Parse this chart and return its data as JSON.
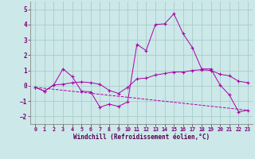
{
  "xlabel": "Windchill (Refroidissement éolien,°C)",
  "bg_color": "#cce8e8",
  "grid_color": "#aacccc",
  "line_color": "#aa00aa",
  "xlim": [
    -0.5,
    23.5
  ],
  "ylim": [
    -2.5,
    5.5
  ],
  "yticks": [
    -2,
    -1,
    0,
    1,
    2,
    3,
    4,
    5
  ],
  "xticks": [
    0,
    1,
    2,
    3,
    4,
    5,
    6,
    7,
    8,
    9,
    10,
    11,
    12,
    13,
    14,
    15,
    16,
    17,
    18,
    19,
    20,
    21,
    22,
    23
  ],
  "series": [
    {
      "x": [
        0,
        1,
        2,
        3,
        4,
        5,
        6,
        7,
        8,
        9,
        10,
        11,
        12,
        13,
        14,
        15,
        16,
        17,
        18,
        19,
        20,
        21,
        22,
        23
      ],
      "y": [
        -0.1,
        -0.35,
        0.05,
        1.1,
        0.6,
        -0.35,
        -0.4,
        -1.4,
        -1.2,
        -1.35,
        -1.05,
        2.7,
        2.3,
        4.0,
        4.05,
        4.7,
        3.4,
        2.5,
        1.1,
        1.1,
        0.05,
        -0.6,
        -1.7,
        -1.6
      ],
      "dashed": false,
      "markers": true
    },
    {
      "x": [
        0,
        1,
        2,
        3,
        4,
        5,
        6,
        7,
        8,
        9,
        10,
        11,
        12,
        13,
        14,
        15,
        16,
        17,
        18,
        19,
        20,
        21,
        22,
        23
      ],
      "y": [
        -0.1,
        -0.35,
        0.05,
        0.1,
        0.2,
        0.25,
        0.2,
        0.1,
        -0.3,
        -0.5,
        -0.1,
        0.45,
        0.5,
        0.7,
        0.8,
        0.9,
        0.9,
        1.0,
        1.05,
        1.0,
        0.75,
        0.65,
        0.3,
        0.2
      ],
      "dashed": false,
      "markers": true
    },
    {
      "x": [
        0,
        23
      ],
      "y": [
        -0.1,
        -1.6
      ],
      "dashed": true,
      "markers": false
    }
  ]
}
